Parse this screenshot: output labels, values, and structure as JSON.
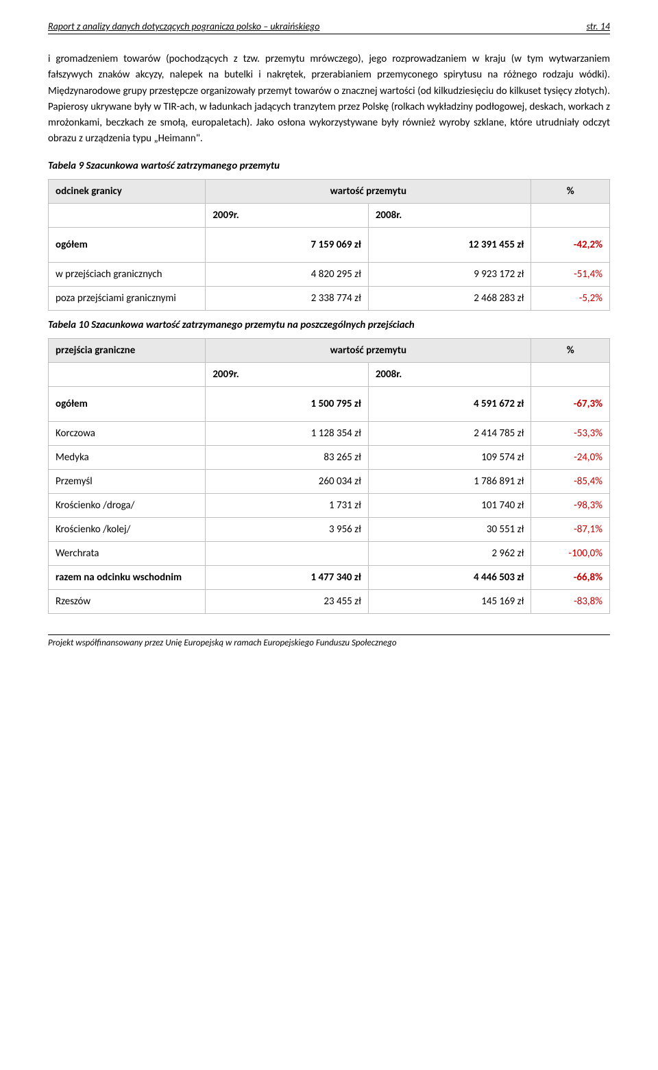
{
  "header": {
    "title": "Raport z analizy danych dotyczących pogranicza polsko – ukraińskiego",
    "page": "str. 14"
  },
  "paragraph": "i gromadzeniem towarów (pochodzących z tzw. przemytu mrówczego), jego rozprowadzaniem w kraju (w tym wytwarzaniem fałszywych znaków akcyzy, nalepek na butelki i nakrętek, przerabianiem przemyconego spirytusu na różnego rodzaju wódki). Międzynarodowe grupy przestępcze organizowały przemyt towarów o znacznej wartości (od kilkudziesięciu do kilkuset tysięcy złotych). Papierosy ukrywane były w TIR-ach, w ładunkach jadących tranzytem przez Polskę (rolkach wykładziny podłogowej, deskach, workach z mrożonkami, beczkach ze smołą, europaletach). Jako osłona wykorzystywane były również wyroby szklane, które utrudniały odczyt obrazu z urządzenia typu „Heimann\".",
  "table9": {
    "caption": "Tabela 9 Szacunkowa wartość zatrzymanego przemytu",
    "head": {
      "col1": "odcinek granicy",
      "col2": "wartość przemytu",
      "col3": "%"
    },
    "sub": {
      "y1": "2009r.",
      "y2": "2008r."
    },
    "rows": [
      {
        "label": "ogółem",
        "v1": "7 159 069 zł",
        "v2": "12 391 455 zł",
        "pct": "-42,2%",
        "bold": true,
        "tall": true
      },
      {
        "label": "w przejściach granicznych",
        "v1": "4 820 295 zł",
        "v2": "9 923 172 zł",
        "pct": "-51,4%"
      },
      {
        "label": "poza przejściami granicznymi",
        "v1": "2 338 774 zł",
        "v2": "2 468 283 zł",
        "pct": "-5,2%"
      }
    ]
  },
  "table10": {
    "caption": "Tabela 10 Szacunkowa wartość zatrzymanego przemytu na poszczególnych przejściach",
    "head": {
      "col1": "przejścia graniczne",
      "col2": "wartość przemytu",
      "col3": "%"
    },
    "sub": {
      "y1": "2009r.",
      "y2": "2008r."
    },
    "rows": [
      {
        "label": "ogółem",
        "v1": "1 500 795 zł",
        "v2": "4 591 672 zł",
        "pct": "-67,3%",
        "bold": true,
        "tall": true
      },
      {
        "label": "Korczowa",
        "v1": "1 128 354 zł",
        "v2": "2 414 785 zł",
        "pct": "-53,3%"
      },
      {
        "label": "Medyka",
        "v1": "83 265 zł",
        "v2": "109 574 zł",
        "pct": "-24,0%"
      },
      {
        "label": "Przemyśl",
        "v1": "260 034 zł",
        "v2": "1 786 891 zł",
        "pct": "-85,4%"
      },
      {
        "label": "Krościenko /droga/",
        "v1": "1 731 zł",
        "v2": "101 740 zł",
        "pct": "-98,3%"
      },
      {
        "label": "Krościenko /kolej/",
        "v1": "3 956 zł",
        "v2": "30 551 zł",
        "pct": "-87,1%"
      },
      {
        "label": "Werchrata",
        "v1": "",
        "v2": "2 962 zł",
        "pct": "-100,0%"
      },
      {
        "label": "razem na odcinku wschodnim",
        "v1": "1 477 340 zł",
        "v2": "4 446 503 zł",
        "pct": "-66,8%",
        "bold": true
      },
      {
        "label": "Rzeszów",
        "v1": "23 455 zł",
        "v2": "145 169 zł",
        "pct": "-83,8%"
      }
    ]
  },
  "footer": "Projekt współfinansowany przez Unię Europejską w ramach Europejskiego Funduszu Społecznego",
  "colors": {
    "neg": "#c00000",
    "header_bg": "#e8e8e8",
    "border": "#bfbfbf"
  }
}
